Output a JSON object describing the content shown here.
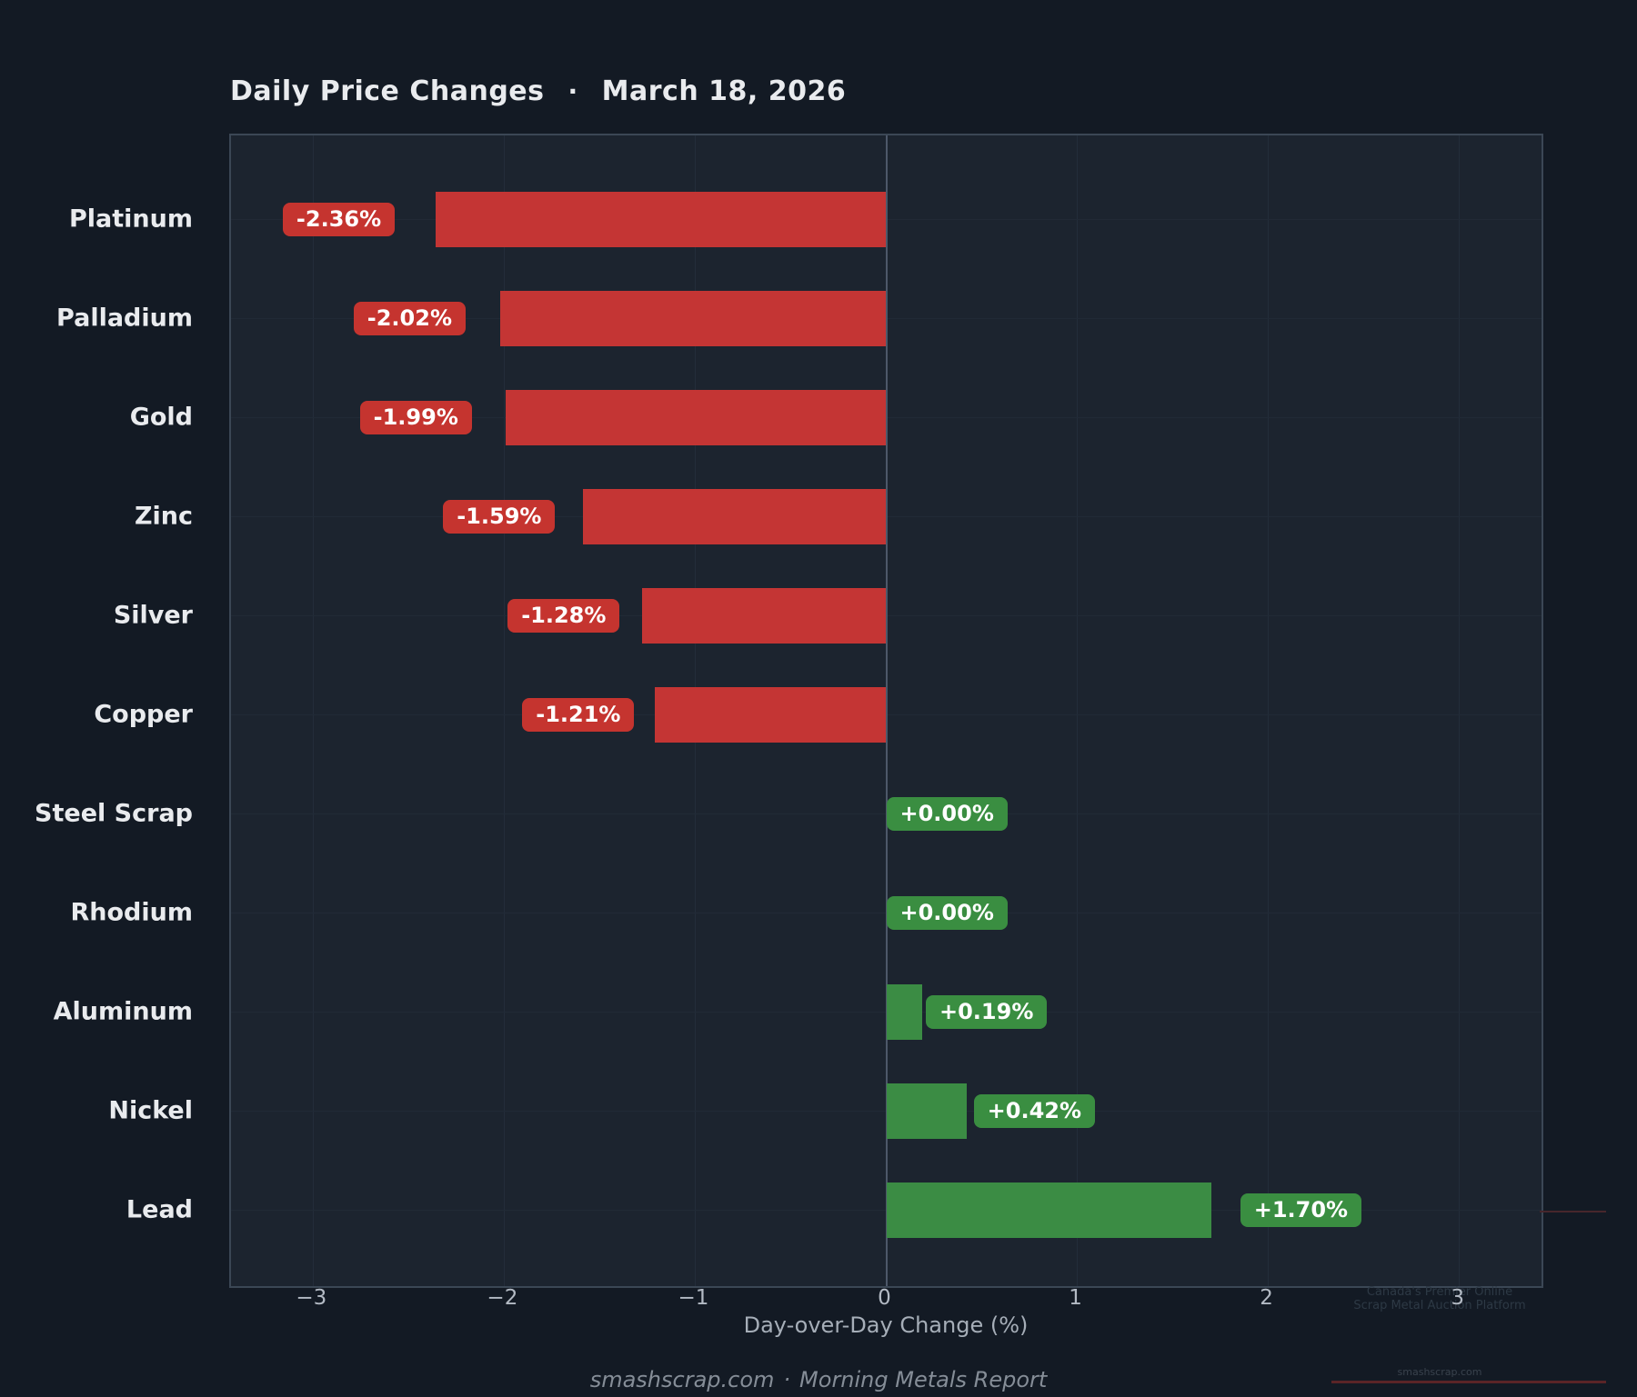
{
  "title": {
    "text": "Daily Price Changes",
    "separator": "·",
    "date": "March 18, 2026"
  },
  "chart_data": {
    "type": "bar",
    "orientation": "horizontal",
    "title": "Daily Price Changes · March 18, 2026",
    "xlabel": "Day-over-Day Change (%)",
    "ylabel": "",
    "xlim": [
      -3.43,
      3.43
    ],
    "grid": true,
    "categories": [
      "Platinum",
      "Palladium",
      "Gold",
      "Zinc",
      "Silver",
      "Copper",
      "Steel Scrap",
      "Rhodium",
      "Aluminum",
      "Nickel",
      "Lead"
    ],
    "values": [
      -2.36,
      -2.02,
      -1.99,
      -1.59,
      -1.28,
      -1.21,
      0.0,
      0.0,
      0.19,
      0.42,
      1.7
    ],
    "value_labels": [
      "-2.36%",
      "-2.02%",
      "-1.99%",
      "-1.59%",
      "-1.28%",
      "-1.21%",
      "+0.00%",
      "+0.00%",
      "+0.19%",
      "+0.42%",
      "+1.70%"
    ],
    "x_ticks": [
      {
        "value": -3,
        "label": "−3"
      },
      {
        "value": -2,
        "label": "−2"
      },
      {
        "value": -1,
        "label": "−1"
      },
      {
        "value": 0,
        "label": "0"
      },
      {
        "value": 1,
        "label": "1"
      },
      {
        "value": 2,
        "label": "2"
      },
      {
        "value": 3,
        "label": "3"
      }
    ],
    "colors": {
      "negative_bar": "#c43534",
      "positive_bar": "#3b8c44",
      "negative_badge": "#c5342f",
      "positive_badge": "#3a8e41",
      "plot_background": "#1c242f",
      "page_background": "#131a24",
      "zero_line": "#4d5869"
    }
  },
  "footer": {
    "site": "smashscrap.com",
    "separator": "·",
    "report": "Morning Metals Report"
  },
  "watermark": {
    "line1": "Canada's Premier Online",
    "line2": "Scrap Metal Auction Platform",
    "url": "smashscrap.com"
  }
}
